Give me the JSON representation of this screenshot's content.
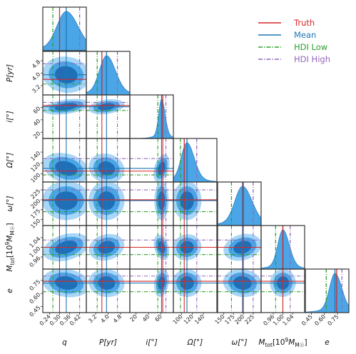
{
  "chart_data": {
    "type": "corner",
    "parameters": [
      {
        "label": "q",
        "range": [
          0.2,
          0.46
        ],
        "ticks": [
          "0.24",
          "0.30",
          "0.36",
          "0.42"
        ],
        "tick_values": [
          0.24,
          0.3,
          0.36,
          0.42
        ],
        "truth": 0.3,
        "mean": 0.34,
        "hdi_low": 0.26,
        "hdi_high": 0.42
      },
      {
        "label": "P[yr]",
        "range": [
          2.6,
          5.4
        ],
        "ticks": [
          "3.2",
          "4.0",
          "4.8"
        ],
        "tick_values": [
          3.2,
          4.0,
          4.8
        ],
        "truth": 3.6,
        "mean": 3.9,
        "hdi_low": 3.3,
        "hdi_high": 4.6
      },
      {
        "label": "i[°]",
        "range": [
          10,
          80
        ],
        "ticks": [
          "20",
          "40",
          "60"
        ],
        "tick_values": [
          20,
          40,
          60
        ],
        "truth": 63,
        "mean": 61,
        "hdi_low": 55,
        "hdi_high": 68
      },
      {
        "label": "Ω[°]",
        "range": [
          85,
          165
        ],
        "ticks": [
          "100",
          "120",
          "140"
        ],
        "tick_values": [
          100,
          120,
          140
        ],
        "truth": 105,
        "mean": 110,
        "hdi_low": 98,
        "hdi_high": 128
      },
      {
        "label": "ω[°]",
        "range": [
          135,
          245
        ],
        "ticks": [
          "150",
          "175",
          "200",
          "225"
        ],
        "tick_values": [
          150,
          175,
          200,
          225
        ],
        "truth": 200,
        "mean": 198,
        "hdi_low": 170,
        "hdi_high": 225
      },
      {
        "label": "M_tot[10^9 M☉]",
        "range": [
          0.91,
          1.09
        ],
        "ticks": [
          "0.96",
          "1.00",
          "1.04"
        ],
        "tick_values": [
          0.96,
          1.0,
          1.04
        ],
        "truth": 1.0,
        "mean": 1.0,
        "hdi_low": 0.97,
        "hdi_high": 1.03
      },
      {
        "label": "e",
        "range": [
          0.38,
          0.88
        ],
        "ticks": [
          "0.45",
          "0.60",
          "0.75"
        ],
        "tick_values": [
          0.45,
          0.6,
          0.75
        ],
        "truth": 0.74,
        "mean": 0.72,
        "hdi_low": 0.62,
        "hdi_high": 0.8
      }
    ],
    "legend": {
      "placement": "top-right",
      "entries": [
        {
          "label": "Truth",
          "color": "#d62728",
          "style": "solid"
        },
        {
          "label": "Mean",
          "color": "#1f77b4",
          "style": "solid"
        },
        {
          "label": "HDI Low",
          "color": "#2ca02c",
          "style": "dashdot"
        },
        {
          "label": "HDI High",
          "color": "#9467bd",
          "style": "dashdot"
        }
      ]
    },
    "colors": {
      "fill_dark": "#1f6fb8",
      "fill_mid": "#4aa6e6",
      "fill_light": "#a8d6f7",
      "frame": "#333333"
    }
  }
}
